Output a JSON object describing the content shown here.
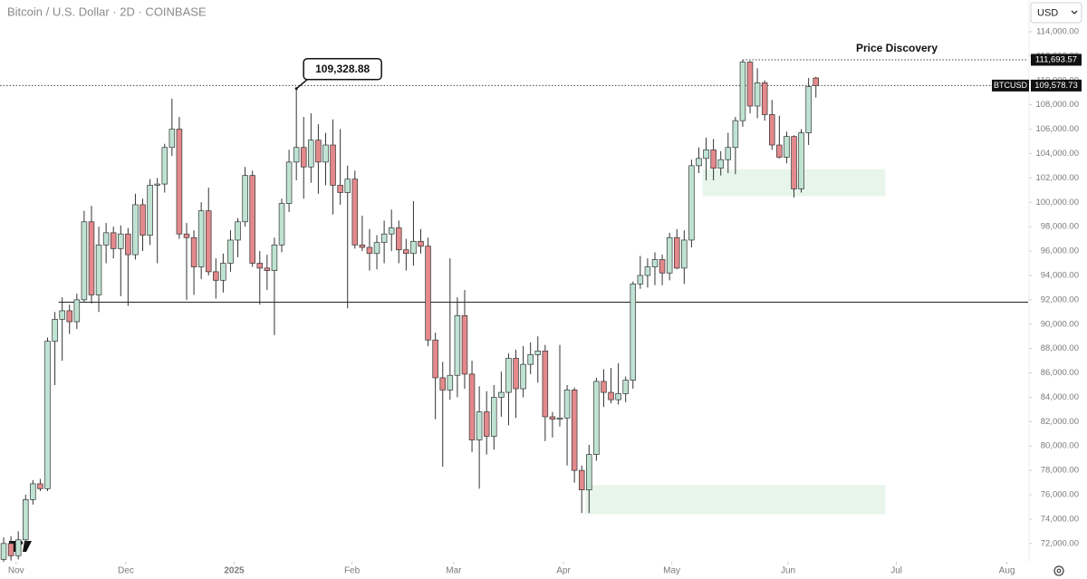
{
  "chart_data": {
    "type": "candlestick",
    "title": "Bitcoin / U.S. Dollar · 2D · COINBASE",
    "currency": "USD",
    "up_color": "#bfe3d3",
    "down_color": "#e3898b",
    "open": [
      70700,
      72000,
      71000,
      72300,
      75600,
      76900,
      76500,
      88600,
      90400,
      91100,
      90200,
      92000,
      98400,
      92400,
      96500,
      97500,
      96200,
      97400,
      95700,
      99800,
      97300,
      101400,
      101500,
      104500,
      106000,
      97400,
      97100,
      94700,
      99300,
      94300,
      93600,
      95000,
      96900,
      98400,
      102200,
      95000,
      94600,
      94400,
      96500,
      99900,
      103300,
      104500,
      102900,
      105100,
      103300,
      104700,
      101400,
      100800,
      101900,
      96500,
      96300,
      95800,
      96700,
      97400,
      97900,
      96100,
      95800,
      96800,
      96400,
      88700,
      85600,
      84600,
      85800,
      90700,
      85900,
      80500,
      82800,
      80800,
      84000,
      84400,
      87200,
      84700,
      86700,
      87500,
      87800,
      82400,
      82200,
      82300,
      84600,
      78000,
      76400,
      79300,
      85300,
      84400,
      83800,
      84300,
      85400,
      93300,
      94000,
      94700,
      95300,
      94200,
      97100,
      94600,
      96900,
      103000,
      103600,
      104300,
      102800,
      103500,
      104500,
      106700,
      111500,
      107900,
      109800,
      107200,
      104700,
      103700,
      105400,
      101100,
      105700,
      110200
    ],
    "high": [
      72500,
      72600,
      73000,
      76000,
      77200,
      77300,
      88900,
      91000,
      92200,
      91600,
      92500,
      99300,
      99700,
      98000,
      98300,
      98000,
      98100,
      97900,
      100700,
      100300,
      101900,
      102000,
      104800,
      108500,
      107000,
      98300,
      97700,
      100000,
      101200,
      95400,
      95800,
      97700,
      98700,
      102900,
      102600,
      96000,
      95700,
      97100,
      100300,
      104300,
      109328.88,
      107000,
      107300,
      106400,
      105700,
      106800,
      106000,
      103000,
      102600,
      98900,
      97800,
      97300,
      98500,
      99400,
      98500,
      97000,
      100100,
      97800,
      97100,
      89300,
      86900,
      95400,
      92200,
      92800,
      87000,
      84900,
      84500,
      85000,
      86100,
      87600,
      87900,
      88200,
      88500,
      89000,
      88300,
      82800,
      88300,
      85000,
      84800,
      78400,
      80100,
      85600,
      86300,
      86400,
      86800,
      85700,
      93500,
      95600,
      95400,
      95900,
      95700,
      97500,
      97800,
      97700,
      103500,
      104500,
      105300,
      105200,
      104200,
      105700,
      107000,
      111693.57,
      111600,
      111000,
      110000,
      108400,
      107100,
      105800,
      105500,
      106000,
      110200,
      110300
    ],
    "low": [
      70500,
      70600,
      70700,
      72000,
      75200,
      76300,
      76300,
      85000,
      87000,
      89200,
      89600,
      91800,
      91700,
      91000,
      95000,
      95400,
      92300,
      91500,
      95300,
      96000,
      96500,
      95000,
      100800,
      103800,
      97000,
      92000,
      92400,
      93700,
      94000,
      92100,
      92600,
      94300,
      95500,
      98000,
      94700,
      91600,
      92800,
      89100,
      95900,
      99200,
      101800,
      100300,
      101600,
      100700,
      101400,
      99000,
      99800,
      91300,
      96200,
      96000,
      94400,
      94500,
      95000,
      96000,
      95000,
      94400,
      94800,
      95800,
      88200,
      82200,
      78300,
      83800,
      84000,
      84700,
      79500,
      76500,
      79300,
      79700,
      82400,
      81700,
      82300,
      84000,
      85900,
      85200,
      80400,
      80700,
      81600,
      78400,
      77000,
      74500,
      74500,
      78800,
      83200,
      83500,
      83400,
      83600,
      84700,
      92900,
      93000,
      93200,
      93200,
      93600,
      94500,
      93300,
      96300,
      102400,
      101800,
      101800,
      102200,
      102400,
      102300,
      106200,
      107300,
      106900,
      106700,
      104300,
      103600,
      103200,
      100400,
      100800,
      104700,
      108600
    ],
    "close": [
      72000,
      71000,
      72300,
      75600,
      76900,
      76500,
      88600,
      90400,
      91100,
      90200,
      92000,
      98400,
      92400,
      96500,
      97500,
      96200,
      97400,
      95700,
      99800,
      97300,
      101400,
      101500,
      104500,
      106000,
      97400,
      97100,
      94700,
      99300,
      94300,
      93600,
      95000,
      96900,
      98400,
      102200,
      95000,
      94600,
      94400,
      96500,
      99900,
      103300,
      104500,
      102900,
      105100,
      103300,
      104700,
      101400,
      100800,
      101900,
      96500,
      96300,
      95800,
      96700,
      97400,
      97900,
      96100,
      95800,
      96800,
      96400,
      88700,
      85600,
      84600,
      85800,
      90700,
      85900,
      80500,
      82800,
      80800,
      84000,
      84400,
      87200,
      84700,
      86700,
      87500,
      87800,
      82400,
      82200,
      82300,
      84600,
      78000,
      76400,
      79300,
      85300,
      84400,
      83800,
      84300,
      85400,
      93300,
      94000,
      94700,
      95300,
      94200,
      97100,
      94600,
      96900,
      103000,
      103600,
      104300,
      102800,
      103500,
      104500,
      106700,
      111500,
      107900,
      109800,
      107200,
      104700,
      103700,
      105400,
      101100,
      105700,
      109500,
      109578.73
    ],
    "xlim": [
      -0.5,
      140
    ],
    "xticks": [
      {
        "value": 1.7,
        "label": "Nov"
      },
      {
        "value": 16.7,
        "label": "Dec"
      },
      {
        "value": 31.5,
        "label": "2025"
      },
      {
        "value": 47.6,
        "label": "Feb"
      },
      {
        "value": 61.5,
        "label": "Mar"
      },
      {
        "value": 76.5,
        "label": "Apr"
      },
      {
        "value": 91.3,
        "label": "May"
      },
      {
        "value": 107.2,
        "label": "Jun"
      },
      {
        "value": 122,
        "label": "Jul"
      },
      {
        "value": 137.1,
        "label": "Aug"
      }
    ],
    "ylim": [
      70500,
      116600
    ],
    "yticks": [
      {
        "value": 72000,
        "label": "72,000.00"
      },
      {
        "value": 74000,
        "label": "74,000.00"
      },
      {
        "value": 76000,
        "label": "76,000.00"
      },
      {
        "value": 78000,
        "label": "78,000.00"
      },
      {
        "value": 80000,
        "label": "80,000.00"
      },
      {
        "value": 82000,
        "label": "82,000.00"
      },
      {
        "value": 84000,
        "label": "84,000.00"
      },
      {
        "value": 86000,
        "label": "86,000.00"
      },
      {
        "value": 88000,
        "label": "88,000.00"
      },
      {
        "value": 90000,
        "label": "90,000.00"
      },
      {
        "value": 92000,
        "label": "92,000.00"
      },
      {
        "value": 94000,
        "label": "94,000.00"
      },
      {
        "value": 96000,
        "label": "96,000.00"
      },
      {
        "value": 98000,
        "label": "98,000.00"
      },
      {
        "value": 100000,
        "label": "100,000.00"
      },
      {
        "value": 102000,
        "label": "102,000.00"
      },
      {
        "value": 104000,
        "label": "104,000.00"
      },
      {
        "value": 106000,
        "label": "106,000.00"
      },
      {
        "value": 108000,
        "label": "108,000.00"
      },
      {
        "value": 110000,
        "label": "110,000.00"
      },
      {
        "value": 112000,
        "label": "112,000.00"
      },
      {
        "value": 114000,
        "label": "114,000.00"
      }
    ],
    "annotations": {
      "high_marker": {
        "value": 109328.88,
        "label": "109,328.88"
      },
      "peak_line": {
        "value": 111693.57,
        "label": "111,693.57"
      },
      "last_price": {
        "symbol": "BTCUSD",
        "value": 109578.73,
        "label": "109,578.73"
      },
      "zone_label": "Price Discovery",
      "support_level": 91800,
      "zones": [
        {
          "low": 100500,
          "high": 102700
        },
        {
          "low": 74400,
          "high": 76800
        }
      ]
    }
  }
}
